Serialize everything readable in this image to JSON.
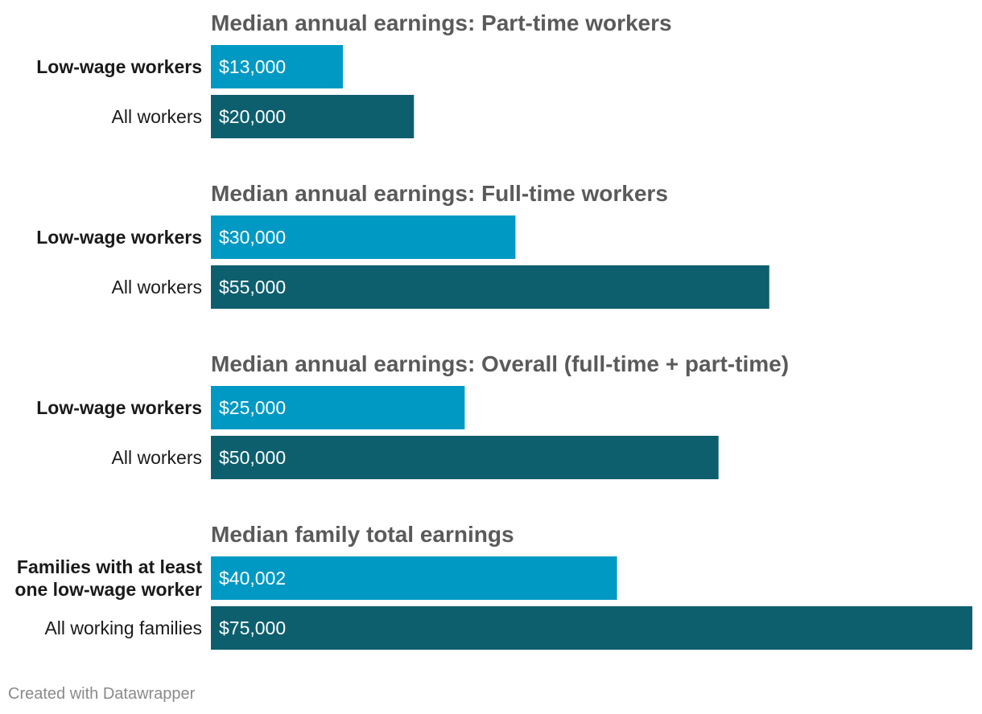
{
  "colors": {
    "highlight": "#0099c4",
    "base": "#0d5f6e",
    "title_text": "#5a5a5a",
    "label_text": "#1a1a1a",
    "value_text": "#ffffff"
  },
  "chart_data": {
    "type": "bar",
    "orientation": "horizontal",
    "panels": [
      {
        "title": "Median annual earnings: Part-time workers",
        "bars": [
          {
            "label": "Low-wage workers",
            "value": 13000,
            "display": "$13,000",
            "emphasis": true
          },
          {
            "label": "All workers",
            "value": 20000,
            "display": "$20,000",
            "emphasis": false
          }
        ]
      },
      {
        "title": "Median annual earnings: Full-time workers",
        "bars": [
          {
            "label": "Low-wage workers",
            "value": 30000,
            "display": "$30,000",
            "emphasis": true
          },
          {
            "label": "All workers",
            "value": 55000,
            "display": "$55,000",
            "emphasis": false
          }
        ]
      },
      {
        "title": "Median annual earnings: Overall (full-time + part-time)",
        "bars": [
          {
            "label": "Low-wage workers",
            "value": 25000,
            "display": "$25,000",
            "emphasis": true
          },
          {
            "label": "All workers",
            "value": 50000,
            "display": "$50,000",
            "emphasis": false
          }
        ]
      },
      {
        "title": "Median family total earnings",
        "bars": [
          {
            "label": [
              "Families with at least",
              "one low-wage worker"
            ],
            "value": 40002,
            "display": "$40,002",
            "emphasis": true
          },
          {
            "label": "All working families",
            "value": 75000,
            "display": "$75,000",
            "emphasis": false
          }
        ]
      }
    ],
    "xlim": [
      0,
      75000
    ],
    "grid": false,
    "legend": "none"
  },
  "footer": "Created with Datawrapper"
}
